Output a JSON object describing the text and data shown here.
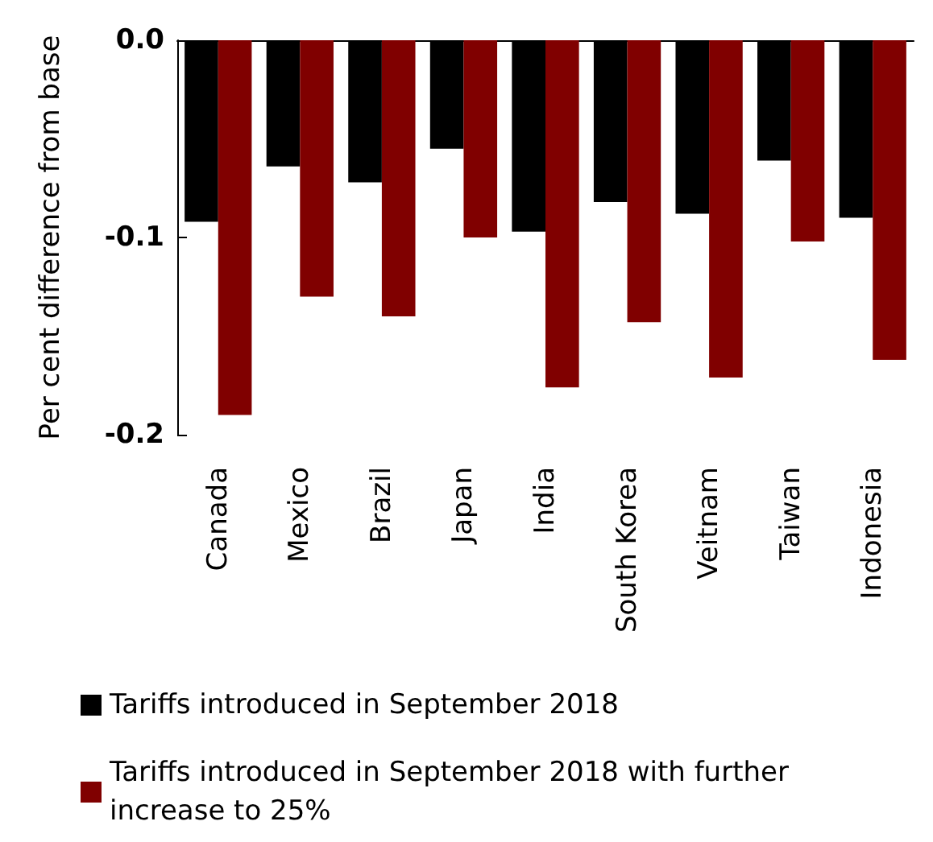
{
  "chart_data": {
    "type": "bar",
    "ylabel": "Per cent difference from base",
    "categories": [
      "Canada",
      "Mexico",
      "Brazil",
      "Japan",
      "India",
      "South Korea",
      "Veitnam",
      "Taiwan",
      "Indonesia"
    ],
    "series": [
      {
        "name": "Tariffs introduced in September 2018",
        "color": "#000000",
        "values": [
          -0.092,
          -0.064,
          -0.072,
          -0.055,
          -0.097,
          -0.082,
          -0.088,
          -0.061,
          -0.09
        ]
      },
      {
        "name": "Tariffs introduced in September 2018 with further increase to 25%",
        "color": "#800000",
        "values": [
          -0.19,
          -0.13,
          -0.14,
          -0.1,
          -0.176,
          -0.143,
          -0.171,
          -0.102,
          -0.162
        ]
      }
    ],
    "ylim": [
      -0.2,
      0
    ],
    "yticks": [
      {
        "value": 0,
        "label": "0.0"
      },
      -0.1,
      -0.2
    ],
    "grid": false,
    "legend": "bottom"
  }
}
